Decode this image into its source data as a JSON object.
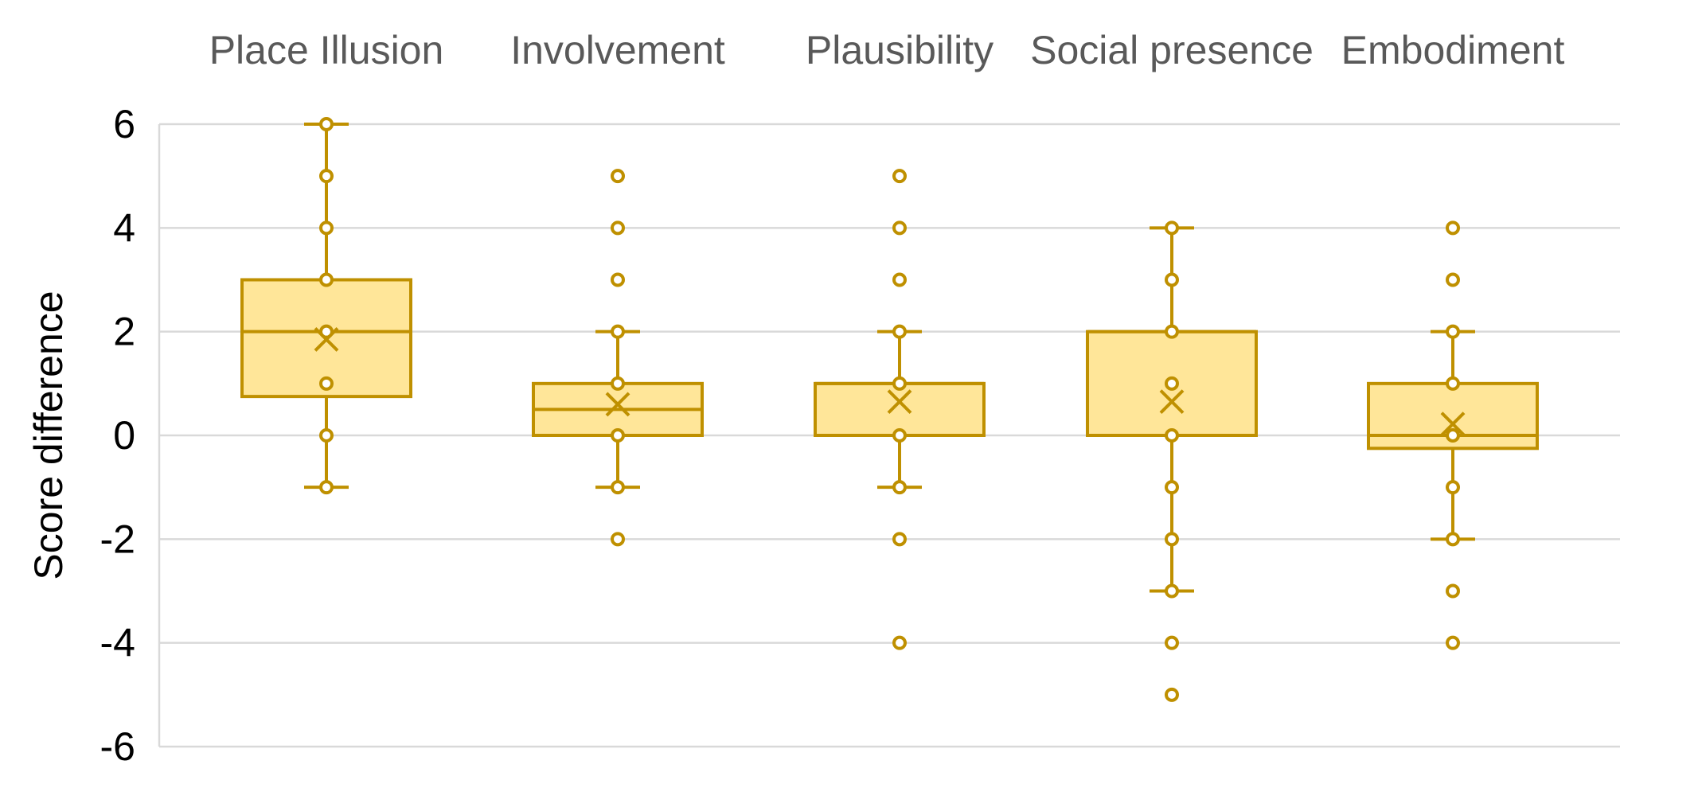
{
  "chart_data": {
    "type": "box",
    "title": "",
    "xlabel": "",
    "ylabel": "Score difference",
    "ylim": [
      -6,
      6
    ],
    "yticks": [
      6,
      4,
      2,
      0,
      -2,
      -4,
      -6
    ],
    "ytick_labels": [
      "6",
      "4",
      "2",
      "0",
      "-2",
      "-4",
      "-6"
    ],
    "grid": true,
    "category_labels_position": "top",
    "colors": {
      "box_fill": "#FFE699",
      "box_stroke": "#BF9000",
      "grid": "#D9D9D9",
      "category_text": "#595959"
    },
    "categories": [
      "Place Illusion",
      "Involvement",
      "Plausibility",
      "Social presence",
      "Embodiment"
    ],
    "boxes": [
      {
        "category": "Place Illusion",
        "whisker_low": -1,
        "q1": 0.75,
        "median": 2,
        "q3": 3,
        "whisker_high": 6,
        "mean": 1.85,
        "points": [
          6,
          5,
          4,
          3,
          2,
          1,
          0,
          -1
        ],
        "outliers": []
      },
      {
        "category": "Involvement",
        "whisker_low": -1,
        "q1": 0,
        "median": 0.5,
        "q3": 1,
        "whisker_high": 2,
        "mean": 0.6,
        "points": [
          2,
          1,
          0,
          -1
        ],
        "outliers": [
          5,
          4,
          3,
          -2
        ]
      },
      {
        "category": "Plausibility",
        "whisker_low": -1,
        "q1": 0,
        "median": 1,
        "q3": 1,
        "whisker_high": 2,
        "mean": 0.65,
        "points": [
          2,
          1,
          0,
          -1
        ],
        "outliers": [
          5,
          4,
          3,
          -2,
          -4
        ]
      },
      {
        "category": "Social presence",
        "whisker_low": -3,
        "q1": 0,
        "median": 2,
        "q3": 2,
        "whisker_high": 4,
        "mean": 0.65,
        "points": [
          4,
          3,
          2,
          1,
          0,
          -1,
          -2,
          -3
        ],
        "outliers": [
          -4,
          -5
        ]
      },
      {
        "category": "Embodiment",
        "whisker_low": -2,
        "q1": -0.25,
        "median": 0,
        "q3": 1,
        "whisker_high": 2,
        "mean": 0.22,
        "points": [
          2,
          1,
          0,
          -1,
          -2
        ],
        "outliers": [
          4,
          3,
          -3,
          -4
        ]
      }
    ]
  }
}
